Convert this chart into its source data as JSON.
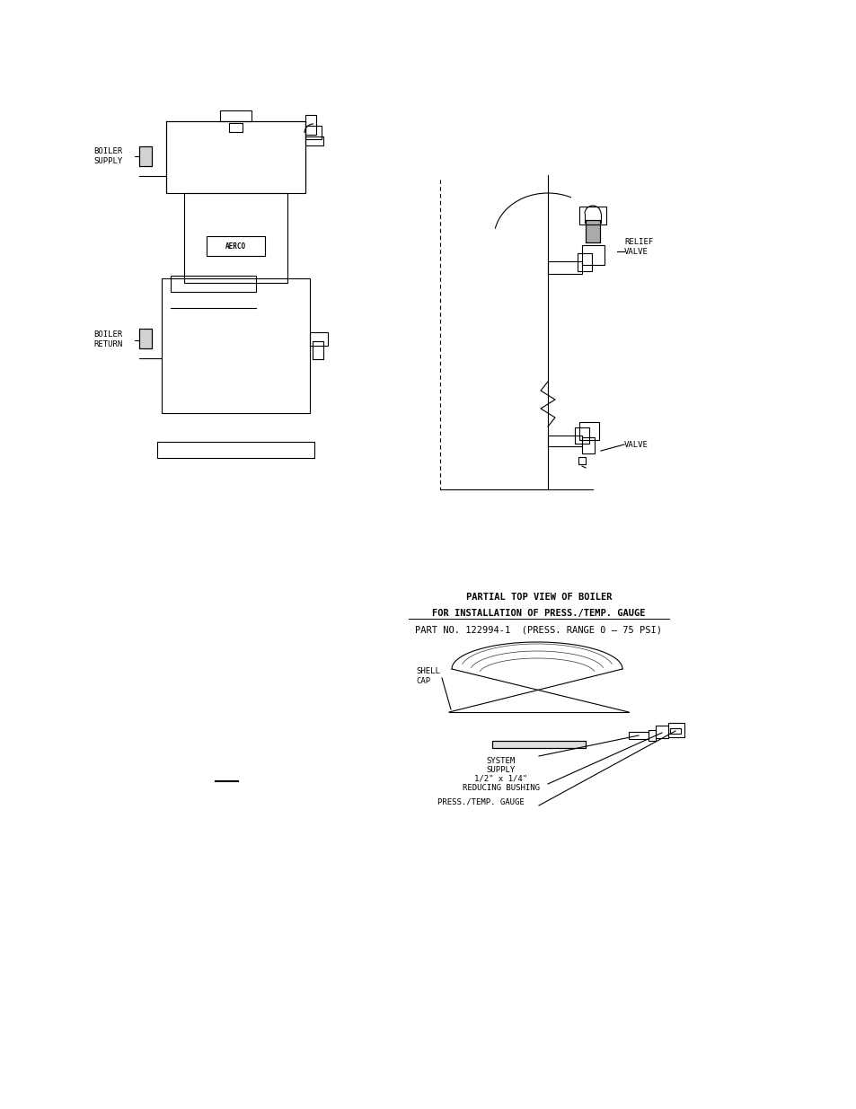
{
  "bg_color": "#ffffff",
  "line_color": "#000000",
  "text_color": "#000000",
  "font_family": "monospace",
  "label_fontsize": 6.5,
  "title_fontsize": 7.5,
  "boiler_label_supply": "BOILER\nSUPPLY",
  "boiler_label_return": "BOILER\nRETURN",
  "relief_valve_label": "RELIEF\nVALVE",
  "valve_label": "VALVE",
  "partial_top_title1": "PARTIAL TOP VIEW OF BOILER",
  "partial_top_title2": "FOR INSTALLATION OF PRESS./TEMP. GAUGE",
  "partial_top_title3": "PART NO. 122994-1  (PRESS. RANGE 0 – 75 PSI)",
  "shell_cap_label": "SHELL\nCAP",
  "system_supply_label": "SYSTEM\nSUPPLY",
  "reducing_bushing_label": "1/2\" x 1/4\"\nREDUCING BUSHING",
  "press_temp_label": "PRESS./TEMP. GAUGE"
}
